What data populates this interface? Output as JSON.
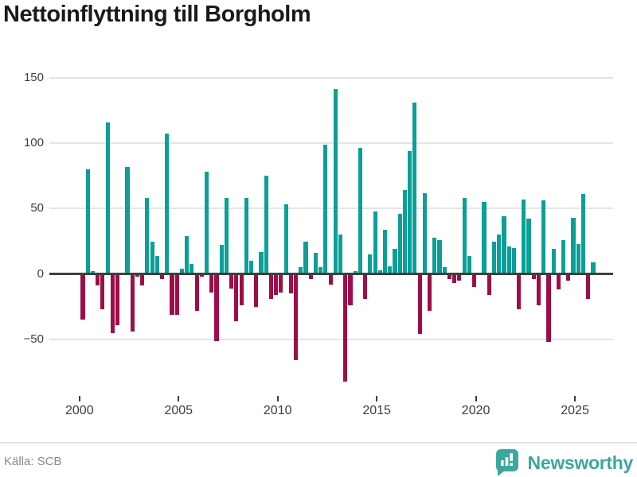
{
  "title": "Nettoinflyttning till Borgholm",
  "footer": {
    "source_label": "Källa: SCB",
    "brand_name": "Newsworthy"
  },
  "colors": {
    "bg": "#ffffff",
    "positive_bar": "#0a9f97",
    "negative_bar": "#9e0d47",
    "brand_teal": "#3ba79e",
    "grid": "#e4e4e4",
    "axis_line": "#3f3f3f",
    "axis_text": "#3d3d3d",
    "title_text": "#1a1a1a",
    "source_text": "#8a8a8a"
  },
  "y_axis": {
    "ticks": [
      {
        "value": 150,
        "label": "150"
      },
      {
        "value": 100,
        "label": "100"
      },
      {
        "value": 50,
        "label": "50"
      },
      {
        "value": 0,
        "label": "0"
      },
      {
        "value": -50,
        "label": "−50"
      }
    ]
  },
  "x_axis": {
    "ticks": [
      {
        "year": 2000,
        "label": "2000"
      },
      {
        "year": 2005,
        "label": "2005"
      },
      {
        "year": 2010,
        "label": "2010"
      },
      {
        "year": 2015,
        "label": "2015"
      },
      {
        "year": 2020,
        "label": "2020"
      },
      {
        "year": 2025,
        "label": "2025"
      }
    ]
  },
  "chart_data": {
    "type": "bar",
    "title": "Nettoinflyttning till Borgholm",
    "frequency": "quarterly",
    "start_period": "2000Q1",
    "end_period": "2025Q4",
    "ylim": [
      -90,
      155
    ],
    "gridlines": [
      150,
      100,
      50,
      0,
      -50
    ],
    "legend": "none",
    "series": [
      [
        "2000Q1",
        -34
      ],
      [
        "2000Q2",
        80
      ],
      [
        "2000Q3",
        2
      ],
      [
        "2000Q4",
        -8
      ],
      [
        "2001Q1",
        -26
      ],
      [
        "2001Q2",
        116
      ],
      [
        "2001Q3",
        -44
      ],
      [
        "2001Q4",
        -38
      ],
      [
        "2002Q1",
        1
      ],
      [
        "2002Q2",
        82
      ],
      [
        "2002Q3",
        -43
      ],
      [
        "2002Q4",
        -1
      ],
      [
        "2003Q1",
        -8
      ],
      [
        "2003Q2",
        58
      ],
      [
        "2003Q3",
        25
      ],
      [
        "2003Q4",
        14
      ],
      [
        "2004Q1",
        -3
      ],
      [
        "2004Q2",
        107
      ],
      [
        "2004Q3",
        -30
      ],
      [
        "2004Q4",
        -30
      ],
      [
        "2005Q1",
        4
      ],
      [
        "2005Q2",
        29
      ],
      [
        "2005Q3",
        8
      ],
      [
        "2005Q4",
        -27
      ],
      [
        "2006Q1",
        -1
      ],
      [
        "2006Q2",
        78
      ],
      [
        "2006Q3",
        -13
      ],
      [
        "2006Q4",
        -50
      ],
      [
        "2007Q1",
        22
      ],
      [
        "2007Q2",
        58
      ],
      [
        "2007Q3",
        -10
      ],
      [
        "2007Q4",
        -35
      ],
      [
        "2008Q1",
        -23
      ],
      [
        "2008Q2",
        58
      ],
      [
        "2008Q3",
        10
      ],
      [
        "2008Q4",
        -24
      ],
      [
        "2009Q1",
        17
      ],
      [
        "2009Q2",
        75
      ],
      [
        "2009Q3",
        -18
      ],
      [
        "2009Q4",
        -15
      ],
      [
        "2010Q1",
        -13
      ],
      [
        "2010Q2",
        53
      ],
      [
        "2010Q3",
        -14
      ],
      [
        "2010Q4",
        -65
      ],
      [
        "2011Q1",
        5
      ],
      [
        "2011Q2",
        25
      ],
      [
        "2011Q3",
        -3
      ],
      [
        "2011Q4",
        16
      ],
      [
        "2012Q1",
        5
      ],
      [
        "2012Q2",
        99
      ],
      [
        "2012Q3",
        -7
      ],
      [
        "2012Q4",
        141
      ],
      [
        "2013Q1",
        30
      ],
      [
        "2013Q2",
        -81
      ],
      [
        "2013Q3",
        -23
      ],
      [
        "2013Q4",
        2
      ],
      [
        "2014Q1",
        96
      ],
      [
        "2014Q2",
        -18
      ],
      [
        "2014Q3",
        15
      ],
      [
        "2014Q4",
        48
      ],
      [
        "2015Q1",
        3
      ],
      [
        "2015Q2",
        34
      ],
      [
        "2015Q3",
        6
      ],
      [
        "2015Q4",
        19
      ],
      [
        "2016Q1",
        46
      ],
      [
        "2016Q2",
        64
      ],
      [
        "2016Q3",
        94
      ],
      [
        "2016Q4",
        131
      ],
      [
        "2017Q1",
        -45
      ],
      [
        "2017Q2",
        62
      ],
      [
        "2017Q3",
        -27
      ],
      [
        "2017Q4",
        28
      ],
      [
        "2018Q1",
        26
      ],
      [
        "2018Q2",
        5
      ],
      [
        "2018Q3",
        -3
      ],
      [
        "2018Q4",
        -6
      ],
      [
        "2019Q1",
        -4
      ],
      [
        "2019Q2",
        58
      ],
      [
        "2019Q3",
        14
      ],
      [
        "2019Q4",
        -9
      ],
      [
        "2020Q1",
        1
      ],
      [
        "2020Q2",
        55
      ],
      [
        "2020Q3",
        -15
      ],
      [
        "2020Q4",
        25
      ],
      [
        "2021Q1",
        30
      ],
      [
        "2021Q2",
        44
      ],
      [
        "2021Q3",
        21
      ],
      [
        "2021Q4",
        20
      ],
      [
        "2022Q1",
        -26
      ],
      [
        "2022Q2",
        57
      ],
      [
        "2022Q3",
        42
      ],
      [
        "2022Q4",
        -3
      ],
      [
        "2023Q1",
        -23
      ],
      [
        "2023Q2",
        56
      ],
      [
        "2023Q3",
        -51
      ],
      [
        "2023Q4",
        19
      ],
      [
        "2024Q1",
        -11
      ],
      [
        "2024Q2",
        26
      ],
      [
        "2024Q3",
        -4
      ],
      [
        "2024Q4",
        43
      ],
      [
        "2025Q1",
        23
      ],
      [
        "2025Q2",
        61
      ],
      [
        "2025Q3",
        -18
      ],
      [
        "2025Q4",
        9
      ]
    ]
  }
}
